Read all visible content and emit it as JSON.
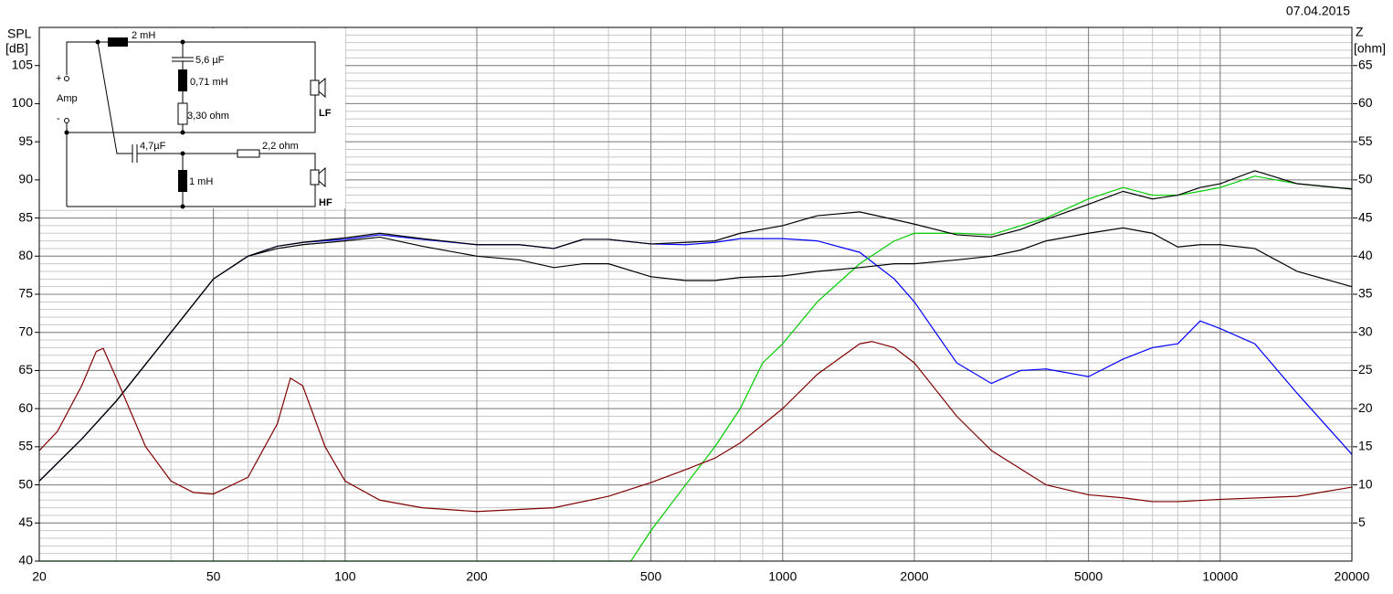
{
  "chart_data": {
    "type": "line",
    "date": "07.04.2015",
    "y_label": "SPL",
    "y_unit": "[dB]",
    "y2_label": "Z",
    "y2_unit": "[ohm]",
    "xscale": "log",
    "xlim": [
      20,
      20000
    ],
    "xticks": [
      20,
      50,
      100,
      200,
      500,
      1000,
      2000,
      5000,
      10000,
      20000
    ],
    "ylim": [
      40,
      110
    ],
    "yticks": [
      40,
      45,
      50,
      55,
      60,
      65,
      70,
      75,
      80,
      85,
      90,
      95,
      100,
      105
    ],
    "y2lim": [
      0,
      70
    ],
    "y2ticks": [
      5,
      10,
      15,
      20,
      25,
      30,
      35,
      40,
      45,
      50,
      55,
      60,
      65
    ],
    "grid": true,
    "annotations": [
      "2 mH",
      "5,6 µF",
      "0,71 mH",
      "3,30 ohm",
      "+",
      "Amp",
      "-",
      "LF",
      "4,7µF",
      "2,2 ohm",
      "1 mH",
      "HF"
    ],
    "series": [
      {
        "color": "#0000ff",
        "x": [
          20,
          25,
          30,
          40,
          50,
          60,
          70,
          80,
          100,
          120,
          150,
          200,
          250,
          300,
          350,
          400,
          500,
          600,
          700,
          800,
          1000,
          1200,
          1500,
          1800,
          2000,
          2500,
          3000,
          3500,
          4000,
          5000,
          6000,
          7000,
          8000,
          9000,
          10000,
          12000,
          15000,
          20000
        ],
        "values": [
          50.5,
          56,
          61,
          70,
          77,
          80,
          81.3,
          81.8,
          82.2,
          82.8,
          82.2,
          81.5,
          81.5,
          81,
          82.2,
          82.2,
          81.6,
          81.5,
          81.8,
          82.3,
          82.3,
          82,
          80.5,
          77,
          74,
          66,
          63.3,
          65,
          65.2,
          64.2,
          66.5,
          68,
          68.5,
          71.5,
          70.5,
          68.5,
          62,
          54
        ]
      },
      {
        "color": "#00cc00",
        "x": [
          20,
          100,
          200,
          400,
          450,
          500,
          600,
          700,
          800,
          900,
          1000,
          1200,
          1500,
          1800,
          2000,
          2500,
          3000,
          3500,
          4000,
          5000,
          6000,
          7000,
          8000,
          9000,
          10000,
          12000,
          15000,
          20000
        ],
        "values": [
          40,
          40,
          40,
          40,
          40,
          44,
          50,
          55,
          60,
          66,
          68.5,
          74,
          79,
          82,
          83,
          83,
          82.8,
          84,
          85,
          87.5,
          89,
          88,
          88,
          88.5,
          89,
          90.5,
          89.5,
          88.8
        ]
      },
      {
        "color": "#000000",
        "x": [
          20,
          25,
          30,
          40,
          50,
          60,
          70,
          80,
          100,
          120,
          150,
          200,
          250,
          300,
          350,
          400,
          500,
          600,
          700,
          800,
          1000,
          1200,
          1500,
          1800,
          2000,
          2500,
          3000,
          3500,
          4000,
          5000,
          6000,
          7000,
          8000,
          9000,
          10000,
          12000,
          15000,
          20000
        ],
        "values": [
          50.5,
          56,
          61,
          70,
          77,
          80,
          81.3,
          81.8,
          82.4,
          83,
          82.3,
          81.5,
          81.5,
          81,
          82.2,
          82.2,
          81.6,
          81.8,
          82,
          83,
          84,
          85.3,
          85.8,
          84.8,
          84.2,
          82.8,
          82.5,
          83.5,
          84.8,
          86.8,
          88.5,
          87.5,
          88,
          89,
          89.5,
          91.2,
          89.5,
          88.8
        ]
      },
      {
        "color": "#000000",
        "x": [
          20,
          25,
          30,
          40,
          50,
          60,
          70,
          80,
          100,
          120,
          150,
          200,
          250,
          300,
          350,
          400,
          500,
          600,
          700,
          800,
          1000,
          1200,
          1500,
          1800,
          2000,
          2500,
          3000,
          3500,
          4000,
          5000,
          6000,
          7000,
          8000,
          9000,
          10000,
          12000,
          15000,
          20000
        ],
        "values": [
          50.5,
          56,
          61,
          70,
          77,
          80,
          81,
          81.5,
          82,
          82.5,
          81.3,
          80,
          79.5,
          78.5,
          79,
          79,
          77.3,
          76.8,
          76.8,
          77.2,
          77.4,
          78,
          78.5,
          79,
          79,
          79.5,
          80,
          80.8,
          82,
          83,
          83.7,
          83,
          81.2,
          81.5,
          81.5,
          81,
          78,
          76
        ]
      },
      {
        "color": "#800000",
        "axis": "y2",
        "x": [
          20,
          22,
          25,
          27,
          28,
          30,
          35,
          40,
          45,
          50,
          60,
          70,
          75,
          80,
          90,
          100,
          120,
          150,
          200,
          300,
          400,
          500,
          600,
          700,
          800,
          1000,
          1200,
          1500,
          1600,
          1800,
          2000,
          2500,
          3000,
          4000,
          5000,
          6000,
          7000,
          8000,
          10000,
          15000,
          20000
        ],
        "values": [
          14.5,
          17,
          23,
          27.5,
          27.9,
          24,
          15,
          10.5,
          9,
          8.8,
          11,
          18,
          24,
          23,
          15,
          10.5,
          8,
          7,
          6.5,
          7,
          8.5,
          10.3,
          12,
          13.5,
          15.5,
          20,
          24.5,
          28.5,
          28.8,
          28,
          26,
          19,
          14.5,
          10,
          8.7,
          8.3,
          7.8,
          7.8,
          8.1,
          8.5,
          9.7
        ]
      }
    ]
  }
}
